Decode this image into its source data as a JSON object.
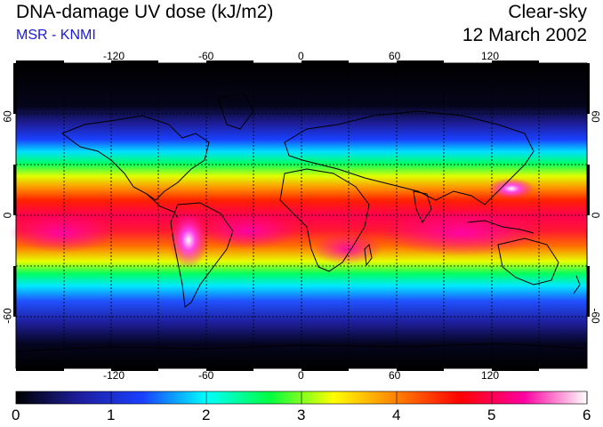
{
  "header": {
    "title": "DNA-damage UV dose (kJ/m2)",
    "subtitle": "MSR - KNMI",
    "condition": "Clear-sky",
    "date": "12 March 2002"
  },
  "map": {
    "lon_ticks": [
      "-120",
      "-60",
      "0",
      "60",
      "120"
    ],
    "lat_ticks_left": [
      "60",
      "0",
      "-60"
    ],
    "lat_ticks_right": [
      "60",
      "0",
      "-60"
    ]
  },
  "colorbar": {
    "min": 0,
    "max": 6,
    "tick_labels": [
      "0",
      "1",
      "2",
      "3",
      "4",
      "5",
      "6"
    ],
    "colors": [
      "#000000",
      "#1e1e9c",
      "#1a40ff",
      "#00ffff",
      "#00ff40",
      "#ffff00",
      "#ff8000",
      "#ff0000",
      "#ff00a0",
      "#ffffff"
    ]
  }
}
